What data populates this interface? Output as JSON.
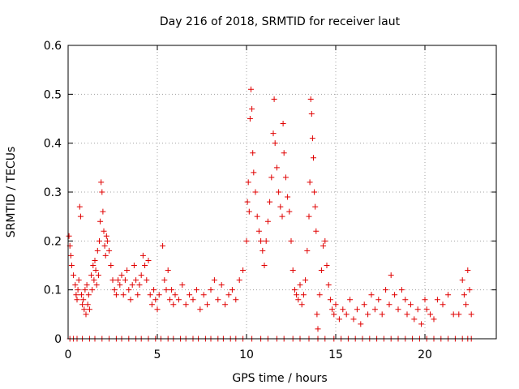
{
  "chart_data": {
    "type": "scatter",
    "title": "Day 216 of 2018, SRMTID for receiver laut",
    "xlabel": "GPS time / hours",
    "ylabel": "SRMTID / TECUs",
    "xlim": [
      0,
      24
    ],
    "ylim": [
      0,
      0.6
    ],
    "xticks": [
      0,
      5,
      10,
      15,
      20
    ],
    "xtick_labels": [
      "0",
      "5",
      "10",
      "15",
      "20"
    ],
    "yticks": [
      0,
      0.1,
      0.2,
      0.3,
      0.4,
      0.5,
      0.6
    ],
    "ytick_labels": [
      "0",
      "0.1",
      "0.2",
      "0.3",
      "0.4",
      "0.5",
      "0.6"
    ],
    "grid": true,
    "marker": "plus",
    "color": "#e00000",
    "series": [
      {
        "name": "SRMTID",
        "points": [
          [
            0.05,
            0.21
          ],
          [
            0.1,
            0.19
          ],
          [
            0.15,
            0.17
          ],
          [
            0.2,
            0.15
          ],
          [
            0.3,
            0.13
          ],
          [
            0.4,
            0.11
          ],
          [
            0.45,
            0.09
          ],
          [
            0.5,
            0.08
          ],
          [
            0.55,
            0.1
          ],
          [
            0.6,
            0.12
          ],
          [
            0.65,
            0.27
          ],
          [
            0.7,
            0.25
          ],
          [
            0.75,
            0.09
          ],
          [
            0.8,
            0.07
          ],
          [
            0.85,
            0.08
          ],
          [
            0.9,
            0.06
          ],
          [
            0.95,
            0.1
          ],
          [
            1.0,
            0.05
          ],
          [
            1.05,
            0.11
          ],
          [
            1.1,
            0.07
          ],
          [
            1.15,
            0.09
          ],
          [
            1.2,
            0.06
          ],
          [
            1.3,
            0.13
          ],
          [
            1.35,
            0.1
          ],
          [
            1.4,
            0.15
          ],
          [
            1.45,
            0.12
          ],
          [
            1.5,
            0.16
          ],
          [
            1.55,
            0.14
          ],
          [
            1.6,
            0.11
          ],
          [
            1.65,
            0.18
          ],
          [
            1.7,
            0.13
          ],
          [
            1.75,
            0.2
          ],
          [
            1.8,
            0.24
          ],
          [
            1.85,
            0.32
          ],
          [
            1.9,
            0.3
          ],
          [
            1.95,
            0.26
          ],
          [
            2.0,
            0.22
          ],
          [
            2.05,
            0.19
          ],
          [
            2.1,
            0.17
          ],
          [
            2.15,
            0.21
          ],
          [
            2.2,
            0.2
          ],
          [
            2.3,
            0.18
          ],
          [
            2.4,
            0.15
          ],
          [
            2.5,
            0.12
          ],
          [
            2.6,
            0.1
          ],
          [
            2.7,
            0.09
          ],
          [
            2.8,
            0.12
          ],
          [
            2.9,
            0.11
          ],
          [
            3.0,
            0.13
          ],
          [
            3.1,
            0.09
          ],
          [
            3.2,
            0.12
          ],
          [
            3.3,
            0.14
          ],
          [
            3.4,
            0.1
          ],
          [
            3.5,
            0.08
          ],
          [
            3.6,
            0.11
          ],
          [
            3.7,
            0.15
          ],
          [
            3.8,
            0.12
          ],
          [
            3.9,
            0.09
          ],
          [
            4.0,
            0.11
          ],
          [
            4.1,
            0.13
          ],
          [
            4.2,
            0.17
          ],
          [
            4.3,
            0.15
          ],
          [
            4.4,
            0.12
          ],
          [
            4.5,
            0.16
          ],
          [
            4.6,
            0.09
          ],
          [
            4.7,
            0.07
          ],
          [
            4.8,
            0.1
          ],
          [
            4.9,
            0.08
          ],
          [
            5.0,
            0.06
          ],
          [
            5.1,
            0.09
          ],
          [
            5.3,
            0.19
          ],
          [
            5.4,
            0.12
          ],
          [
            5.5,
            0.1
          ],
          [
            5.6,
            0.14
          ],
          [
            5.7,
            0.08
          ],
          [
            5.8,
            0.1
          ],
          [
            5.9,
            0.07
          ],
          [
            6.0,
            0.09
          ],
          [
            6.2,
            0.08
          ],
          [
            6.4,
            0.11
          ],
          [
            6.6,
            0.07
          ],
          [
            6.8,
            0.09
          ],
          [
            7.0,
            0.08
          ],
          [
            7.2,
            0.1
          ],
          [
            7.4,
            0.06
          ],
          [
            7.6,
            0.09
          ],
          [
            7.8,
            0.07
          ],
          [
            8.0,
            0.1
          ],
          [
            8.2,
            0.12
          ],
          [
            8.4,
            0.08
          ],
          [
            8.6,
            0.11
          ],
          [
            8.8,
            0.07
          ],
          [
            9.0,
            0.09
          ],
          [
            9.2,
            0.1
          ],
          [
            9.4,
            0.08
          ],
          [
            9.6,
            0.12
          ],
          [
            9.8,
            0.14
          ],
          [
            10.0,
            0.2
          ],
          [
            10.05,
            0.28
          ],
          [
            10.1,
            0.32
          ],
          [
            10.15,
            0.26
          ],
          [
            10.2,
            0.45
          ],
          [
            10.25,
            0.51
          ],
          [
            10.3,
            0.47
          ],
          [
            10.35,
            0.38
          ],
          [
            10.4,
            0.34
          ],
          [
            10.5,
            0.3
          ],
          [
            10.6,
            0.25
          ],
          [
            10.7,
            0.22
          ],
          [
            10.8,
            0.2
          ],
          [
            10.9,
            0.18
          ],
          [
            11.0,
            0.15
          ],
          [
            11.1,
            0.2
          ],
          [
            11.2,
            0.24
          ],
          [
            11.3,
            0.28
          ],
          [
            11.4,
            0.33
          ],
          [
            11.5,
            0.42
          ],
          [
            11.55,
            0.49
          ],
          [
            11.6,
            0.4
          ],
          [
            11.7,
            0.35
          ],
          [
            11.8,
            0.3
          ],
          [
            11.9,
            0.27
          ],
          [
            12.0,
            0.25
          ],
          [
            12.05,
            0.44
          ],
          [
            12.1,
            0.38
          ],
          [
            12.2,
            0.33
          ],
          [
            12.3,
            0.29
          ],
          [
            12.4,
            0.26
          ],
          [
            12.5,
            0.2
          ],
          [
            12.6,
            0.14
          ],
          [
            12.7,
            0.1
          ],
          [
            12.8,
            0.09
          ],
          [
            12.9,
            0.08
          ],
          [
            13.0,
            0.11
          ],
          [
            13.1,
            0.07
          ],
          [
            13.2,
            0.09
          ],
          [
            13.3,
            0.12
          ],
          [
            13.4,
            0.18
          ],
          [
            13.5,
            0.25
          ],
          [
            13.55,
            0.32
          ],
          [
            13.6,
            0.49
          ],
          [
            13.65,
            0.46
          ],
          [
            13.7,
            0.41
          ],
          [
            13.75,
            0.37
          ],
          [
            13.8,
            0.3
          ],
          [
            13.85,
            0.27
          ],
          [
            13.9,
            0.22
          ],
          [
            13.95,
            0.05
          ],
          [
            14.0,
            0.02
          ],
          [
            14.1,
            0.09
          ],
          [
            14.2,
            0.14
          ],
          [
            14.3,
            0.19
          ],
          [
            14.4,
            0.2
          ],
          [
            14.5,
            0.15
          ],
          [
            14.6,
            0.11
          ],
          [
            14.7,
            0.08
          ],
          [
            14.8,
            0.06
          ],
          [
            14.9,
            0.05
          ],
          [
            15.0,
            0.07
          ],
          [
            15.2,
            0.04
          ],
          [
            15.4,
            0.06
          ],
          [
            15.6,
            0.05
          ],
          [
            15.8,
            0.08
          ],
          [
            16.0,
            0.04
          ],
          [
            16.2,
            0.06
          ],
          [
            16.4,
            0.03
          ],
          [
            16.6,
            0.07
          ],
          [
            16.8,
            0.05
          ],
          [
            17.0,
            0.09
          ],
          [
            17.2,
            0.06
          ],
          [
            17.4,
            0.08
          ],
          [
            17.6,
            0.05
          ],
          [
            17.8,
            0.1
          ],
          [
            18.0,
            0.07
          ],
          [
            18.1,
            0.13
          ],
          [
            18.3,
            0.09
          ],
          [
            18.5,
            0.06
          ],
          [
            18.7,
            0.1
          ],
          [
            18.9,
            0.08
          ],
          [
            19.0,
            0.05
          ],
          [
            19.2,
            0.07
          ],
          [
            19.4,
            0.04
          ],
          [
            19.6,
            0.06
          ],
          [
            19.8,
            0.03
          ],
          [
            20.0,
            0.08
          ],
          [
            20.1,
            0.06
          ],
          [
            20.3,
            0.05
          ],
          [
            20.5,
            0.04
          ],
          [
            20.7,
            0.08
          ],
          [
            21.0,
            0.07
          ],
          [
            21.3,
            0.09
          ],
          [
            21.6,
            0.05
          ],
          [
            21.9,
            0.05
          ],
          [
            22.1,
            0.12
          ],
          [
            22.2,
            0.09
          ],
          [
            22.3,
            0.07
          ],
          [
            22.4,
            0.14
          ],
          [
            22.5,
            0.1
          ],
          [
            22.6,
            0.05
          ]
        ]
      }
    ],
    "zero_points_x": [
      0.1,
      0.3,
      0.5,
      0.8,
      1.2,
      1.5,
      1.9,
      2.3,
      2.7,
      3.0,
      3.4,
      3.8,
      4.1,
      4.5,
      4.9,
      5.2,
      5.6,
      5.9,
      6.3,
      6.6,
      7.0,
      7.3,
      7.7,
      8.0,
      8.4,
      8.7,
      9.1,
      9.4,
      9.8,
      10.3,
      10.8,
      11.2,
      11.7,
      12.1,
      12.6,
      13.0,
      13.5,
      14.0,
      14.4,
      14.9,
      15.3,
      15.7,
      16.1,
      16.5,
      16.9,
      17.3,
      17.7,
      18.1,
      18.5,
      18.9,
      19.3,
      19.7,
      20.1,
      20.5,
      20.9,
      21.3,
      21.7,
      22.1,
      22.4,
      22.6
    ]
  }
}
